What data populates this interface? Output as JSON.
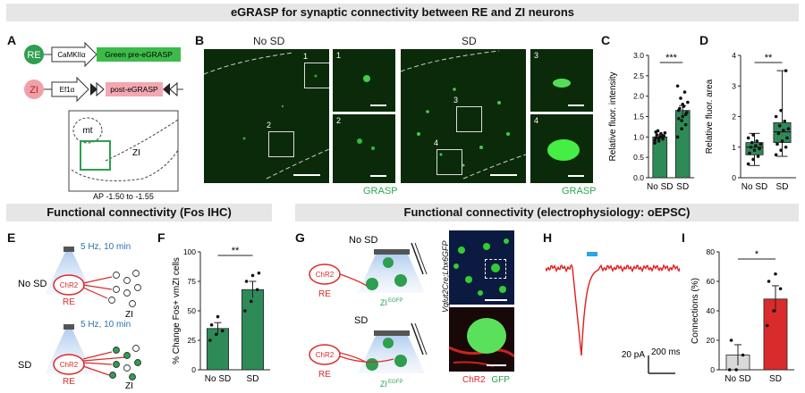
{
  "banners": {
    "top": "eGRASP for synaptic connectivity between RE and ZI neurons",
    "fos": "Functional connectivity (Fos IHC)",
    "ephys": "Functional connectivity (electrophysiology: oEPSC)"
  },
  "panel_letters": {
    "A": "A",
    "B": "B",
    "C": "C",
    "D": "D",
    "E": "E",
    "F": "F",
    "G": "G",
    "H": "H",
    "I": "I"
  },
  "panelA": {
    "re_label": "RE",
    "zi_label": "ZI",
    "promoter1": "CaMKIIα",
    "construct1": "Green pre-eGRASP",
    "promoter2": "Ef1α",
    "construct2": "post-eGRASP",
    "mt_label": "mt",
    "zi_region": "ZI",
    "ap": "AP -1.50 to -1.55"
  },
  "panelB": {
    "nosd_title": "No SD",
    "sd_title": "SD",
    "roi_nosd": [
      "1",
      "2"
    ],
    "roi_sd": [
      "3",
      "4"
    ],
    "inset_nums": [
      "1",
      "2",
      "3",
      "4"
    ],
    "grasp_label": "GRASP"
  },
  "panelE": {
    "stim": "5 Hz, 10 min",
    "nosd": "No SD",
    "sd": "SD",
    "chr2": "ChR2",
    "re": "RE",
    "zi": "ZI"
  },
  "panelG": {
    "nosd": "No SD",
    "sd": "SD",
    "chr2": "ChR2",
    "re": "RE",
    "zi_egfp": "ZI",
    "zi_sup": "EGFP",
    "side_label": "Vglut2Cre;Lhx6GFP",
    "chr2_legend": "ChR2",
    "gfp_legend": "GFP"
  },
  "panelH": {
    "scale_pa": "20 pA",
    "scale_ms": "200 ms"
  },
  "colors": {
    "green": "#2e8b57",
    "red": "#d92b2b",
    "pink": "#f0a0a8",
    "grey": "#cccccc",
    "blue": "#2e6fb0"
  },
  "chart_data": [
    {
      "id": "C",
      "type": "bar",
      "categories": [
        "No SD",
        "SD"
      ],
      "values": [
        1.0,
        1.65
      ],
      "errors": [
        0.05,
        0.12
      ],
      "points": [
        [
          0.85,
          0.9,
          0.95,
          0.98,
          1.0,
          1.02,
          1.05,
          1.08,
          1.1,
          1.15,
          1.0,
          0.92,
          0.97,
          1.03,
          1.12
        ],
        [
          1.0,
          1.2,
          1.3,
          1.45,
          1.5,
          1.6,
          1.7,
          1.75,
          1.85,
          1.95,
          2.1,
          2.25,
          1.4,
          1.55,
          1.65,
          1.8
        ]
      ],
      "ylabel": "Relative fluor. intensity",
      "ylim": [
        0,
        3.0
      ],
      "yticks": [
        "0.0",
        "0.5",
        "1.0",
        "1.5",
        "2.0",
        "2.5",
        "3.0"
      ],
      "significance": "***"
    },
    {
      "id": "D",
      "type": "box",
      "categories": [
        "No SD",
        "SD"
      ],
      "boxes": [
        {
          "min": 0.4,
          "q1": 0.75,
          "median": 1.0,
          "q3": 1.15,
          "max": 1.45
        },
        {
          "min": 0.7,
          "q1": 1.15,
          "median": 1.5,
          "q3": 1.8,
          "max": 3.5
        }
      ],
      "points": [
        [
          0.45,
          0.6,
          0.7,
          0.8,
          0.9,
          0.95,
          1.0,
          1.05,
          1.1,
          1.15,
          1.2,
          1.3,
          1.4
        ],
        [
          0.75,
          0.9,
          1.0,
          1.1,
          1.2,
          1.3,
          1.45,
          1.55,
          1.6,
          1.7,
          1.85,
          2.0,
          2.2,
          3.5
        ]
      ],
      "ylabel": "Relative fluor. area",
      "ylim": [
        0,
        4
      ],
      "yticks": [
        "0",
        "1",
        "2",
        "3",
        "4"
      ],
      "significance": "**"
    },
    {
      "id": "F",
      "type": "bar",
      "categories": [
        "No SD",
        "SD"
      ],
      "values": [
        35,
        68
      ],
      "errors": [
        5,
        7
      ],
      "points": [
        [
          25,
          30,
          33,
          38,
          45
        ],
        [
          50,
          58,
          68,
          75,
          80,
          82
        ]
      ],
      "ylabel": "% Change Fos+ vmZI cells",
      "ylim": [
        0,
        100
      ],
      "yticks": [
        "0",
        "25",
        "50",
        "75",
        "100"
      ],
      "significance": "**"
    },
    {
      "id": "I",
      "type": "bar",
      "categories": [
        "No SD",
        "SD"
      ],
      "values": [
        10,
        48
      ],
      "errors": [
        7,
        9
      ],
      "points": [
        [
          0,
          0,
          10,
          20
        ],
        [
          30,
          40,
          55,
          60,
          65
        ]
      ],
      "ylabel": "Connections (%)",
      "ylim": [
        0,
        80
      ],
      "yticks": [
        "0",
        "20",
        "40",
        "60",
        "80"
      ],
      "significance": "*"
    }
  ]
}
